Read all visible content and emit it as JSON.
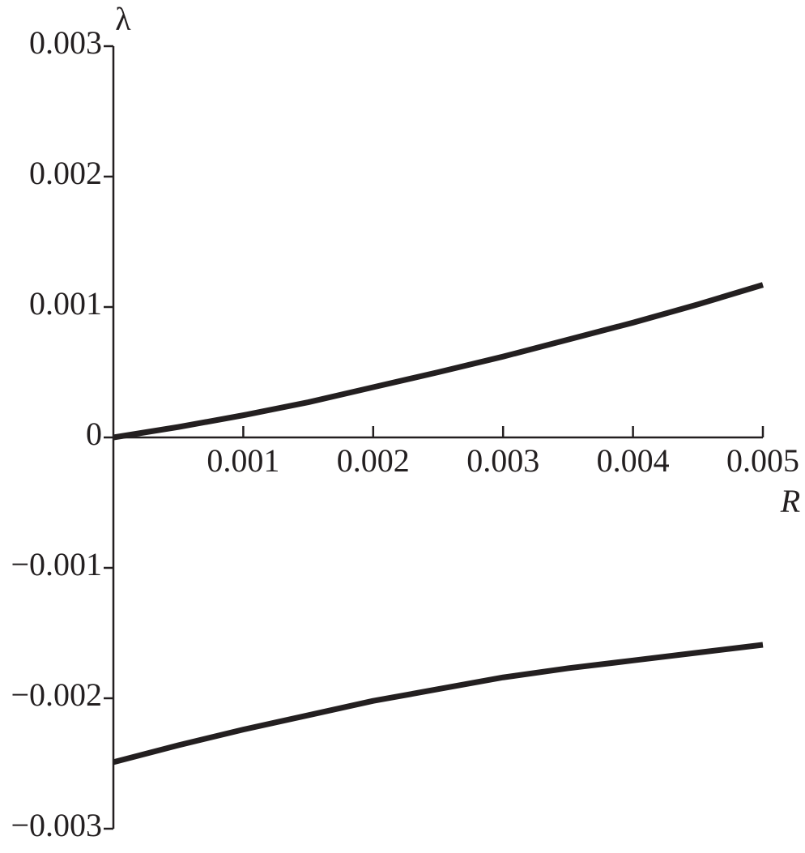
{
  "chart_data": {
    "type": "line",
    "x_label": "R",
    "y_label": "λ",
    "xlim": [
      0,
      0.005
    ],
    "ylim": [
      -0.003,
      0.003
    ],
    "xticks": [
      0.001,
      0.002,
      0.003,
      0.004,
      0.005
    ],
    "yticks": [
      0.003,
      0.002,
      0.001,
      0,
      {
        "value": -0.001,
        "label": "−0.001"
      },
      {
        "value": -0.002,
        "label": "−0.002"
      },
      {
        "value": -0.003,
        "label": "−0.003"
      }
    ],
    "grid": false,
    "series": [
      {
        "color": "#231f20",
        "x": [
          0,
          0.0005,
          0.001,
          0.0015,
          0.002,
          0.0025,
          0.003,
          0.0035,
          0.004,
          0.0045,
          0.005
        ],
        "values": [
          0,
          8e-05,
          0.00017,
          0.00027,
          0.000385,
          0.0005,
          0.00062,
          0.00075,
          0.00088,
          0.00102,
          0.00117
        ]
      },
      {
        "color": "#231f20",
        "x": [
          0,
          0.0005,
          0.001,
          0.0015,
          0.002,
          0.0025,
          0.003,
          0.0035,
          0.004,
          0.0045,
          0.005
        ],
        "values": [
          -0.00249,
          -0.00236,
          -0.00224,
          -0.00213,
          -0.00202,
          -0.00193,
          -0.00184,
          -0.00177,
          -0.00171,
          -0.00165,
          -0.00159
        ]
      }
    ]
  }
}
